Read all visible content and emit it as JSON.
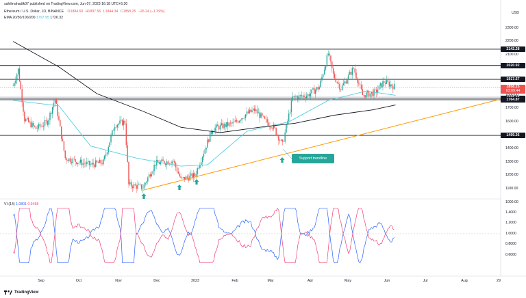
{
  "header": {
    "author": "sahilmahadik07 published on TradingView.com, Jun 07, 2023 16:18 UTC+5:30",
    "symbol": "Ethereum / U.S. Dollar, 1D, BINANCE",
    "ohlc": {
      "o_label": "O",
      "o": "1884.60",
      "h_label": "H",
      "h": "1897.56",
      "l_label": "L",
      "l": "1844.34",
      "c_label": "C",
      "c": "1858.25",
      "change": "−26.24 (−1.39%)"
    },
    "ema_label": "EMA 20/50/100/200",
    "ema_values": [
      "1797.95",
      "1726.32"
    ],
    "vi_label": "VI (14)",
    "vi_values": [
      "1.0801",
      "0.9458"
    ],
    "currency": "USD"
  },
  "price_axis": [
    "2300.00",
    "2200.00",
    "2100.00",
    "2000.00",
    "1900.00",
    "1800.00",
    "1700.00",
    "1600.00",
    "1500.00",
    "1400.00",
    "1300.00",
    "1200.00",
    "1100.00",
    "1000.00"
  ],
  "price_tags": [
    {
      "value": "2142.28",
      "style": "black",
      "level": 2142.28
    },
    {
      "value": "2020.92",
      "style": "black",
      "level": 2020.92
    },
    {
      "value": "1917.57",
      "style": "black",
      "level": 1917.57
    },
    {
      "value": "1858.25",
      "sub": "03:09:44",
      "style": "red",
      "level": 1858.25
    },
    {
      "value": "1775.83",
      "style": "black",
      "level": 1775.83
    },
    {
      "value": "1764.87",
      "style": "black",
      "level": 1764.87
    },
    {
      "value": "1499.36",
      "style": "black",
      "level": 1499.36
    }
  ],
  "vi_axis": [
    "1.4000",
    "1.2000",
    "1.0000",
    "0.8000",
    "0.6000"
  ],
  "time_axis": [
    "Sep",
    "Oct",
    "Nov",
    "Dec",
    "2023",
    "Feb",
    "Mar",
    "Apr",
    "May",
    "Jun",
    "Jul",
    "Aug",
    "29"
  ],
  "annotation": "Support trendline",
  "footer": {
    "brand": "TradingView"
  },
  "colors": {
    "up": "#26a69a",
    "down": "#ef5350",
    "ema50": "#4dd0e1",
    "ema200": "#131722",
    "trendline": "#ff9800",
    "vi_plus": "#2962ff",
    "vi_minus": "#f23f72",
    "arrow": "#26a69a"
  },
  "chart_data": {
    "type": "candlestick",
    "title": "Ethereum / U.S. Dollar, 1D, BINANCE",
    "xlabel": "",
    "ylabel": "",
    "ylim": [
      950,
      2350
    ],
    "horizontal_levels": [
      2142.28,
      2020.92,
      1917.57,
      1775.83,
      1764.87,
      1499.36
    ],
    "anchors": [
      {
        "x": "Aug 10",
        "close": 1870
      },
      {
        "x": "Aug 14",
        "close": 1990
      },
      {
        "x": "Aug 19",
        "close": 1620
      },
      {
        "x": "Aug 28",
        "close": 1550
      },
      {
        "x": "Sep 6",
        "close": 1600
      },
      {
        "x": "Sep 12",
        "close": 1770
      },
      {
        "x": "Sep 20",
        "close": 1330
      },
      {
        "x": "Oct 1",
        "close": 1300
      },
      {
        "x": "Oct 10",
        "close": 1280
      },
      {
        "x": "Oct 20",
        "close": 1300
      },
      {
        "x": "Oct 29",
        "close": 1580
      },
      {
        "x": "Nov 6",
        "close": 1600
      },
      {
        "x": "Nov 9",
        "close": 1130
      },
      {
        "x": "Nov 20",
        "close": 1110
      },
      {
        "x": "Nov 30",
        "close": 1290
      },
      {
        "x": "Dec 14",
        "close": 1310
      },
      {
        "x": "Dec 20",
        "close": 1170
      },
      {
        "x": "Dec 31",
        "close": 1200
      },
      {
        "x": "Jan 14",
        "close": 1550
      },
      {
        "x": "Jan 31",
        "close": 1590
      },
      {
        "x": "Feb 8",
        "close": 1650
      },
      {
        "x": "Feb 16",
        "close": 1690
      },
      {
        "x": "Feb 24",
        "close": 1610
      },
      {
        "x": "Mar 3",
        "close": 1560
      },
      {
        "x": "Mar 10",
        "close": 1430
      },
      {
        "x": "Mar 18",
        "close": 1780
      },
      {
        "x": "Mar 30",
        "close": 1800
      },
      {
        "x": "Apr 8",
        "close": 1860
      },
      {
        "x": "Apr 15",
        "close": 2110
      },
      {
        "x": "Apr 19",
        "close": 1950
      },
      {
        "x": "Apr 25",
        "close": 1850
      },
      {
        "x": "May 5",
        "close": 2000
      },
      {
        "x": "May 12",
        "close": 1800
      },
      {
        "x": "May 22",
        "close": 1820
      },
      {
        "x": "May 29",
        "close": 1900
      },
      {
        "x": "Jun 7",
        "close": 1858
      }
    ],
    "series": [
      {
        "name": "EMA 50",
        "values": [
          {
            "x": "Aug 10",
            "y": 1760
          },
          {
            "x": "Sep 15",
            "y": 1720
          },
          {
            "x": "Oct 10",
            "y": 1420
          },
          {
            "x": "Nov 15",
            "y": 1330
          },
          {
            "x": "Dec 20",
            "y": 1270
          },
          {
            "x": "Jan 10",
            "y": 1280
          },
          {
            "x": "Feb 10",
            "y": 1530
          },
          {
            "x": "Mar 15",
            "y": 1600
          },
          {
            "x": "Apr 15",
            "y": 1760
          },
          {
            "x": "May 15",
            "y": 1830
          },
          {
            "x": "Jun 7",
            "y": 1798
          }
        ]
      },
      {
        "name": "EMA 200",
        "values": [
          {
            "x": "Aug 10",
            "y": 2200
          },
          {
            "x": "Sep 15",
            "y": 2010
          },
          {
            "x": "Oct 15",
            "y": 1810
          },
          {
            "x": "Nov 20",
            "y": 1680
          },
          {
            "x": "Dec 20",
            "y": 1560
          },
          {
            "x": "Jan 20",
            "y": 1520
          },
          {
            "x": "Feb 20",
            "y": 1560
          },
          {
            "x": "Mar 20",
            "y": 1590
          },
          {
            "x": "Apr 20",
            "y": 1650
          },
          {
            "x": "May 20",
            "y": 1690
          },
          {
            "x": "Jun 7",
            "y": 1726
          }
        ]
      },
      {
        "name": "Support trendline",
        "values": [
          {
            "x": "Nov 20",
            "y": 1090
          },
          {
            "x": "Aug 3",
            "y": 1770
          }
        ]
      }
    ],
    "vi_series": [
      {
        "name": "VI+",
        "last": 1.0801
      },
      {
        "name": "VI-",
        "last": 0.9458
      }
    ],
    "vi_ylim": [
      0.4,
      1.5
    ]
  }
}
